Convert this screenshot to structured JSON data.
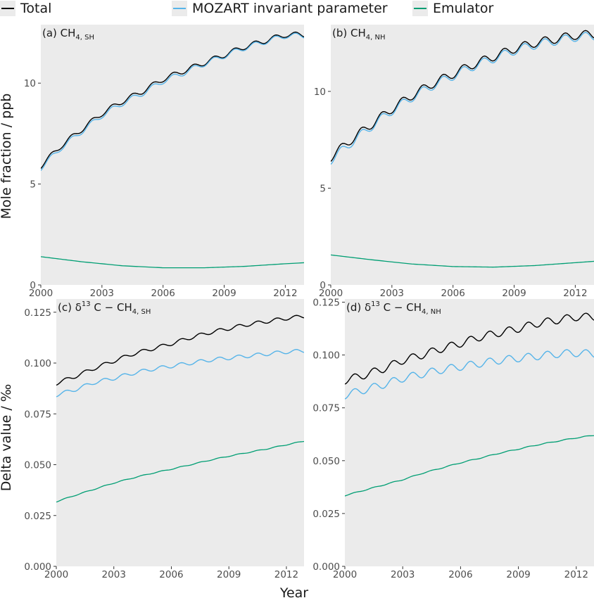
{
  "legend": {
    "items": [
      {
        "label": "Total",
        "color": "#000000"
      },
      {
        "label": "MOZART invariant parameter",
        "color": "#56b4e9"
      },
      {
        "label": "Emulator",
        "color": "#009e73"
      }
    ]
  },
  "axes": {
    "xlabel": "Year",
    "ylabel_top": "Mole fraction / ppb",
    "ylabel_bottom": "Delta value / ‰"
  },
  "chart_data": [
    {
      "type": "line",
      "panel": "a",
      "title": "(a) CH4, SH",
      "title_parts": {
        "prefix": "(a) ",
        "species": "CH",
        "sub": "4, SH"
      },
      "x_ticks": [
        2000,
        2003,
        2006,
        2009,
        2012
      ],
      "xlim": [
        2000,
        2012.92
      ],
      "y_ticks": [
        0,
        5,
        10
      ],
      "y_tick_labels": [
        "0",
        "5",
        "10"
      ],
      "ylim": [
        0,
        12.9
      ],
      "series": [
        {
          "name": "Total",
          "color": "#000000",
          "seasonal_amp": 0.13,
          "x": [
            2000,
            2001,
            2002,
            2003,
            2004,
            2005,
            2006,
            2007,
            2008,
            2009,
            2010,
            2011,
            2012,
            2012.92
          ],
          "y": [
            5.9,
            6.9,
            7.7,
            8.5,
            9.1,
            9.6,
            10.2,
            10.6,
            11.0,
            11.4,
            11.8,
            12.1,
            12.4,
            12.4
          ]
        },
        {
          "name": "MOZART invariant parameter",
          "color": "#56b4e9",
          "seasonal_amp": 0.13,
          "x": [
            2000,
            2001,
            2002,
            2003,
            2004,
            2005,
            2006,
            2007,
            2008,
            2009,
            2010,
            2011,
            2012,
            2012.92
          ],
          "y": [
            5.8,
            6.8,
            7.6,
            8.4,
            9.0,
            9.5,
            10.1,
            10.5,
            10.95,
            11.35,
            11.75,
            12.05,
            12.35,
            12.35
          ]
        },
        {
          "name": "Emulator",
          "color": "#009e73",
          "seasonal_amp": 0.0,
          "x": [
            2000,
            2002,
            2004,
            2006,
            2008,
            2010,
            2012,
            2012.92
          ],
          "y": [
            1.4,
            1.15,
            0.95,
            0.85,
            0.85,
            0.92,
            1.05,
            1.1
          ]
        }
      ]
    },
    {
      "type": "line",
      "panel": "b",
      "title": "(b) CH4, NH",
      "title_parts": {
        "prefix": "(b) ",
        "species": "CH",
        "sub": "4, NH"
      },
      "x_ticks": [
        2000,
        2003,
        2006,
        2009,
        2012
      ],
      "xlim": [
        2000,
        2012.92
      ],
      "y_ticks": [
        0,
        5,
        10
      ],
      "y_tick_labels": [
        "0",
        "5",
        "10"
      ],
      "ylim": [
        0,
        13.45
      ],
      "series": [
        {
          "name": "Total",
          "color": "#000000",
          "seasonal_amp": 0.22,
          "x": [
            2000,
            2001,
            2002,
            2003,
            2004,
            2005,
            2006,
            2007,
            2008,
            2009,
            2010,
            2011,
            2012,
            2012.92
          ],
          "y": [
            6.6,
            7.5,
            8.3,
            9.1,
            9.8,
            10.4,
            10.9,
            11.4,
            11.8,
            12.2,
            12.5,
            12.7,
            12.9,
            12.95
          ]
        },
        {
          "name": "MOZART invariant parameter",
          "color": "#56b4e9",
          "seasonal_amp": 0.22,
          "x": [
            2000,
            2001,
            2002,
            2003,
            2004,
            2005,
            2006,
            2007,
            2008,
            2009,
            2010,
            2011,
            2012,
            2012.92
          ],
          "y": [
            6.45,
            7.35,
            8.2,
            9.0,
            9.7,
            10.3,
            10.8,
            11.3,
            11.7,
            12.1,
            12.4,
            12.6,
            12.8,
            12.85
          ]
        },
        {
          "name": "Emulator",
          "color": "#009e73",
          "seasonal_amp": 0.0,
          "x": [
            2000,
            2002,
            2004,
            2006,
            2008,
            2010,
            2012,
            2012.92
          ],
          "y": [
            1.55,
            1.3,
            1.08,
            0.95,
            0.92,
            1.0,
            1.15,
            1.22
          ]
        }
      ]
    },
    {
      "type": "line",
      "panel": "c",
      "title": "(c) δ13 C − CH4, SH",
      "title_parts": {
        "prefix": "(c) ",
        "delta": "δ",
        "sup": "13",
        "rest": " C − CH",
        "sub": "4, SH"
      },
      "x_ticks": [
        2000,
        2003,
        2006,
        2009,
        2012
      ],
      "xlim": [
        2000,
        2012.92
      ],
      "y_ticks": [
        0,
        0.025,
        0.05,
        0.075,
        0.1,
        0.125
      ],
      "y_tick_labels": [
        "0.000",
        "0.025",
        "0.050",
        "0.075",
        "0.100",
        "0.125"
      ],
      "ylim": [
        0,
        0.1315
      ],
      "series": [
        {
          "name": "Total",
          "color": "#000000",
          "seasonal_amp": 0.0009,
          "x": [
            2000,
            2001,
            2002,
            2003,
            2004,
            2005,
            2006,
            2007,
            2008,
            2009,
            2010,
            2011,
            2012,
            2012.92
          ],
          "y": [
            0.09,
            0.0935,
            0.0975,
            0.101,
            0.1045,
            0.107,
            0.1095,
            0.1125,
            0.115,
            0.117,
            0.119,
            0.1205,
            0.122,
            0.123
          ]
        },
        {
          "name": "MOZART invariant parameter",
          "color": "#56b4e9",
          "seasonal_amp": 0.0009,
          "x": [
            2000,
            2001,
            2002,
            2003,
            2004,
            2005,
            2006,
            2007,
            2008,
            2009,
            2010,
            2011,
            2012,
            2012.92
          ],
          "y": [
            0.0843,
            0.087,
            0.0905,
            0.0925,
            0.095,
            0.097,
            0.0985,
            0.1,
            0.1015,
            0.1025,
            0.1035,
            0.1045,
            0.1055,
            0.106
          ]
        },
        {
          "name": "Emulator",
          "color": "#009e73",
          "seasonal_amp": 0.0002,
          "x": [
            2000,
            2001,
            2002,
            2003,
            2004,
            2005,
            2006,
            2007,
            2008,
            2009,
            2010,
            2011,
            2012,
            2012.92
          ],
          "y": [
            0.0318,
            0.035,
            0.038,
            0.041,
            0.0435,
            0.0458,
            0.0478,
            0.05,
            0.0522,
            0.0542,
            0.056,
            0.0578,
            0.0598,
            0.0616
          ]
        }
      ]
    },
    {
      "type": "line",
      "panel": "d",
      "title": "(d) δ13 C − CH4, NH",
      "title_parts": {
        "prefix": "(d) ",
        "delta": "δ",
        "sup": "13",
        "rest": " C − CH",
        "sub": "4, NH"
      },
      "x_ticks": [
        2000,
        2003,
        2006,
        2009,
        2012
      ],
      "xlim": [
        2000,
        2012.92
      ],
      "y_ticks": [
        0,
        0.025,
        0.05,
        0.075,
        0.1,
        0.125
      ],
      "y_tick_labels": [
        "0.000",
        "0.025",
        "0.050",
        "0.075",
        "0.100",
        "0.125"
      ],
      "ylim": [
        0,
        0.1265
      ],
      "series": [
        {
          "name": "Total",
          "color": "#000000",
          "seasonal_amp": 0.0018,
          "x": [
            2000,
            2001,
            2002,
            2003,
            2004,
            2005,
            2006,
            2007,
            2008,
            2009,
            2010,
            2011,
            2012,
            2012.92
          ],
          "y": [
            0.088,
            0.0905,
            0.0935,
            0.0975,
            0.1,
            0.103,
            0.1055,
            0.1085,
            0.1105,
            0.1125,
            0.115,
            0.1165,
            0.118,
            0.118
          ]
        },
        {
          "name": "MOZART invariant parameter",
          "color": "#56b4e9",
          "seasonal_amp": 0.0018,
          "x": [
            2000,
            2001,
            2002,
            2003,
            2004,
            2005,
            2006,
            2007,
            2008,
            2009,
            2010,
            2011,
            2012,
            2012.92
          ],
          "y": [
            0.081,
            0.0835,
            0.086,
            0.089,
            0.091,
            0.093,
            0.0945,
            0.096,
            0.0975,
            0.0985,
            0.0995,
            0.1005,
            0.101,
            0.1005
          ]
        },
        {
          "name": "Emulator",
          "color": "#009e73",
          "seasonal_amp": 0.0002,
          "x": [
            2000,
            2001,
            2002,
            2003,
            2004,
            2005,
            2006,
            2007,
            2008,
            2009,
            2010,
            2011,
            2012,
            2012.92
          ],
          "y": [
            0.0335,
            0.036,
            0.0385,
            0.041,
            0.044,
            0.0465,
            0.049,
            0.0512,
            0.0535,
            0.0555,
            0.0575,
            0.0592,
            0.0608,
            0.062
          ]
        }
      ]
    }
  ]
}
